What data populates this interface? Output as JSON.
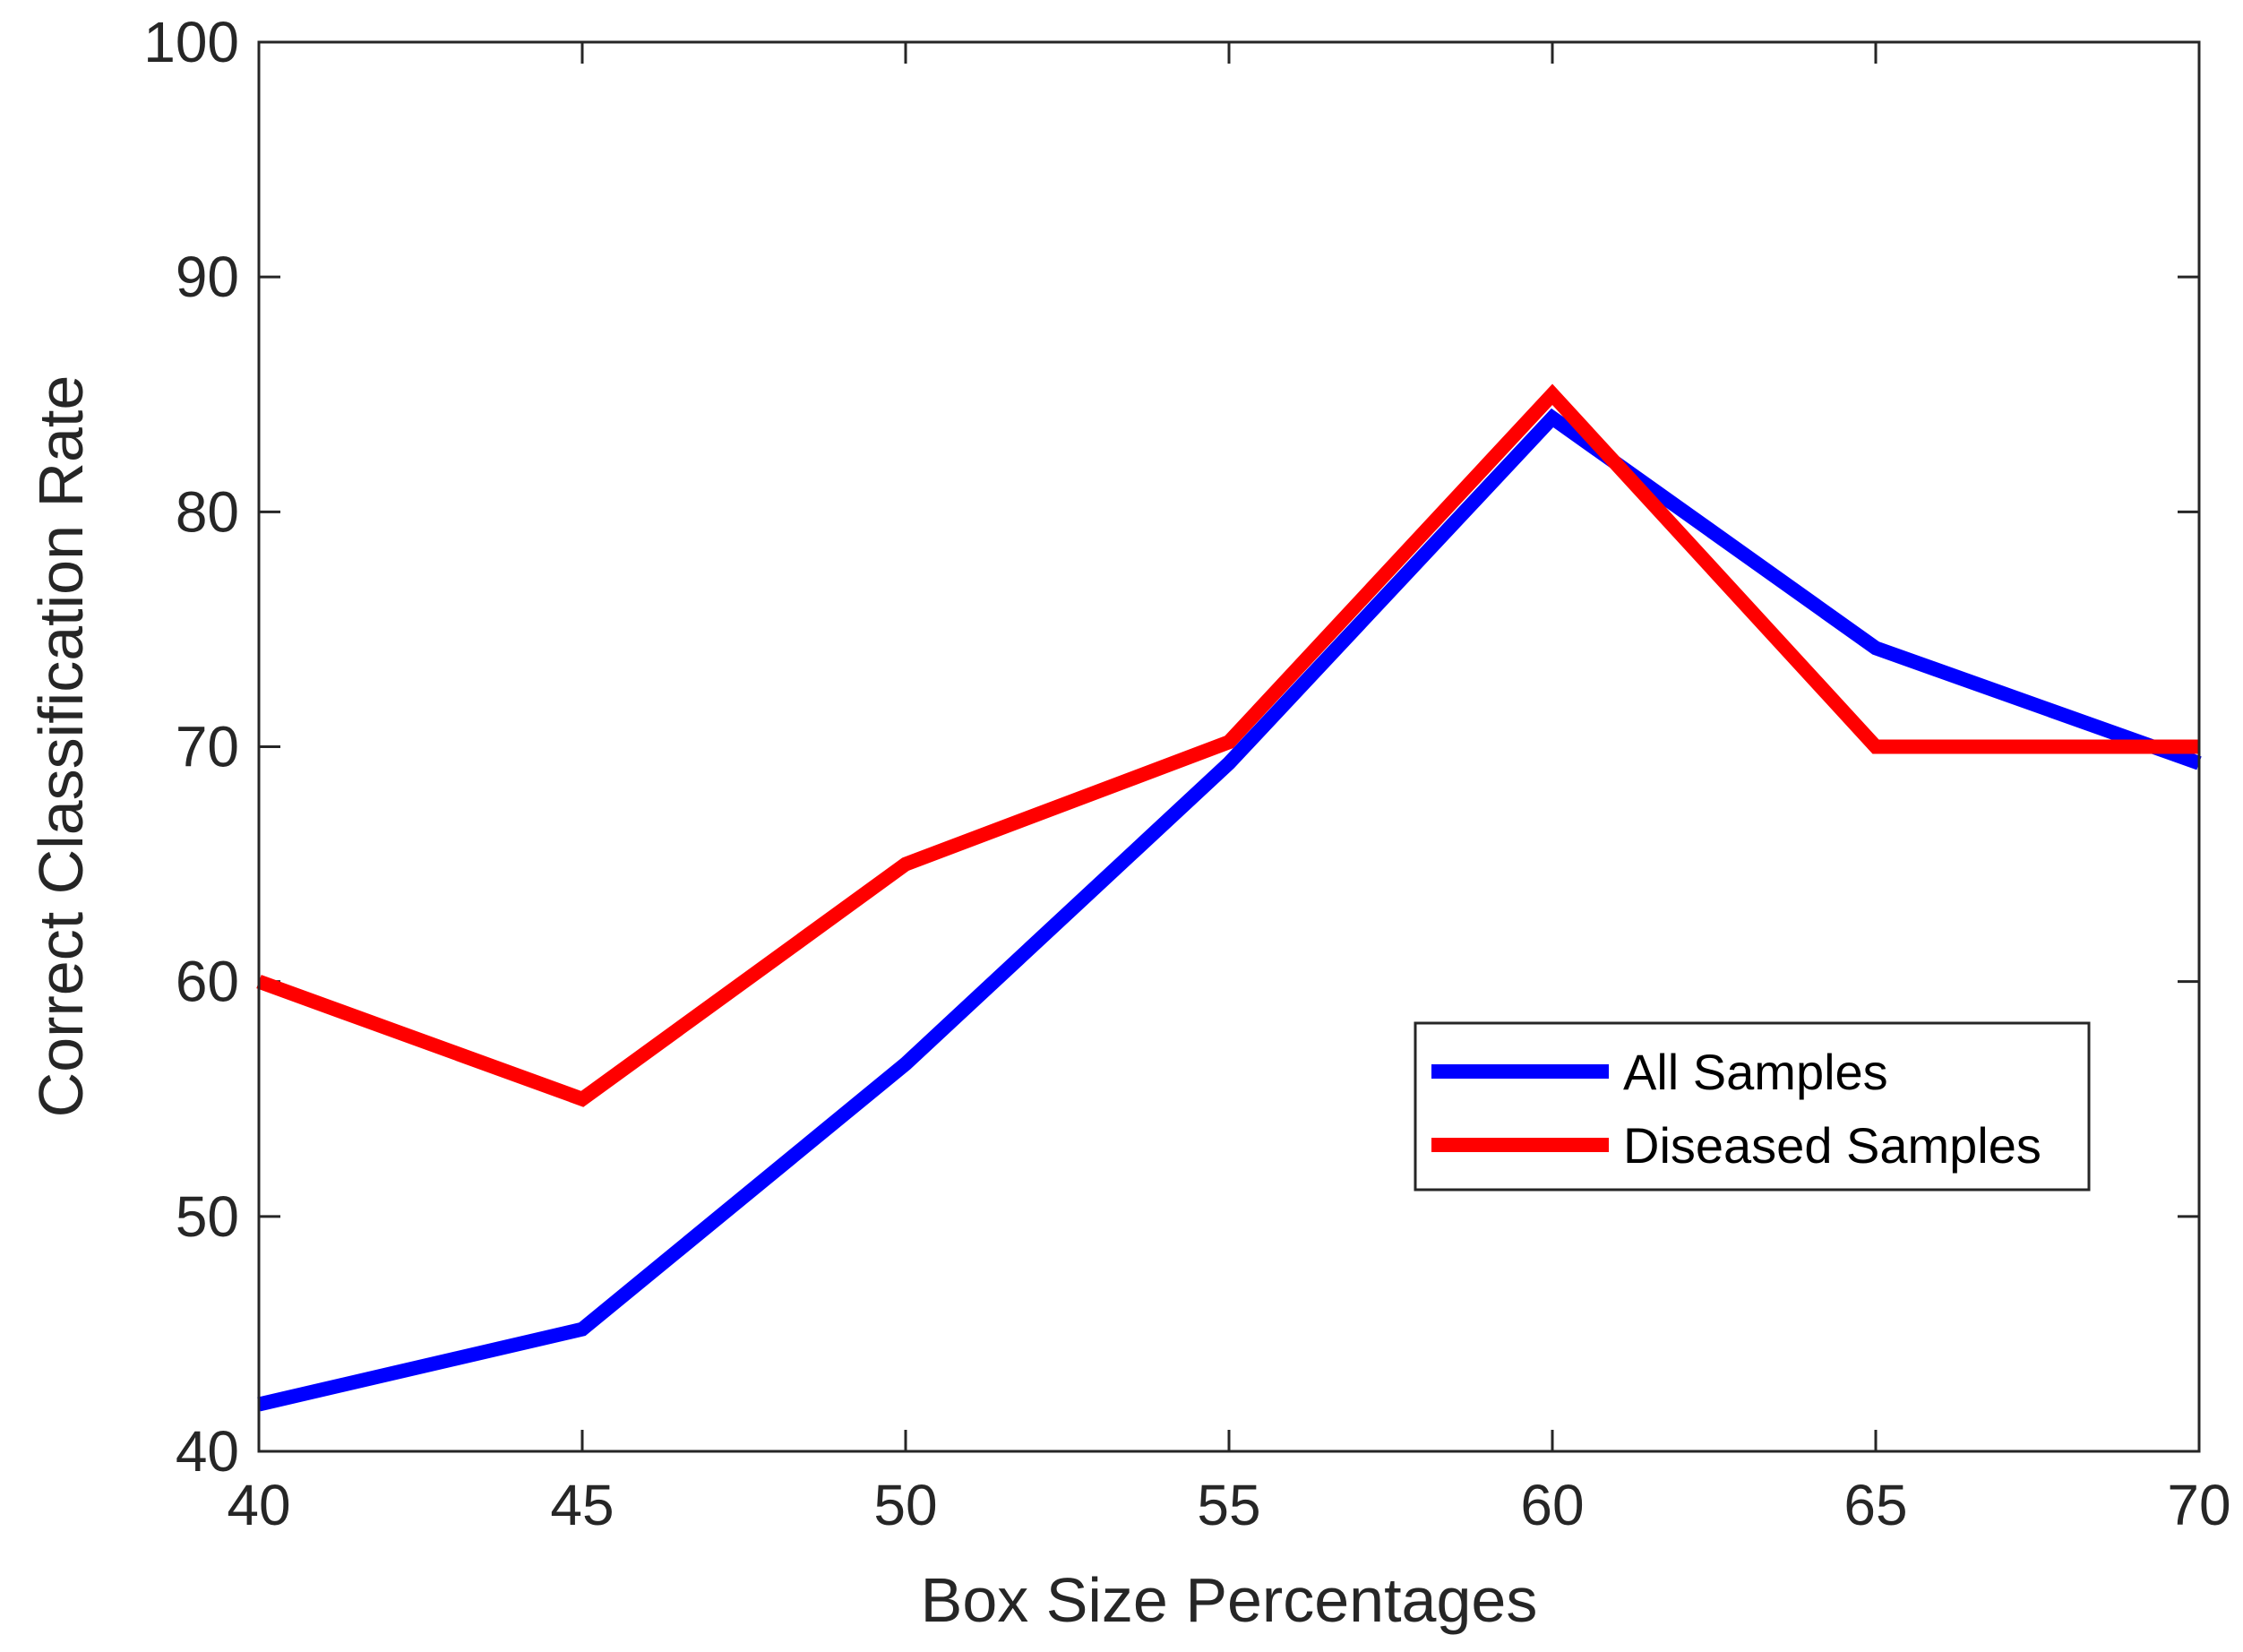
{
  "chart_data": {
    "type": "line",
    "title": "",
    "xlabel": "Box Size Percentages",
    "ylabel": "Correct Classification Rate",
    "xlim": [
      40,
      70
    ],
    "ylim": [
      40,
      100
    ],
    "xticks": [
      "40",
      "45",
      "50",
      "55",
      "60",
      "65",
      "70"
    ],
    "yticks": [
      "40",
      "50",
      "60",
      "70",
      "80",
      "90",
      "100"
    ],
    "x": [
      40,
      45,
      50,
      55,
      60,
      65,
      70
    ],
    "series": [
      {
        "name": "All Samples",
        "color": "#0000ff",
        "values": [
          42,
          45.2,
          56.5,
          69.3,
          84,
          74.2,
          69.3
        ]
      },
      {
        "name": "Diseased Samples",
        "color": "#ff0000",
        "values": [
          60,
          55,
          65,
          70.2,
          85,
          70,
          70
        ]
      }
    ],
    "legend": "inside-right",
    "grid": false
  }
}
